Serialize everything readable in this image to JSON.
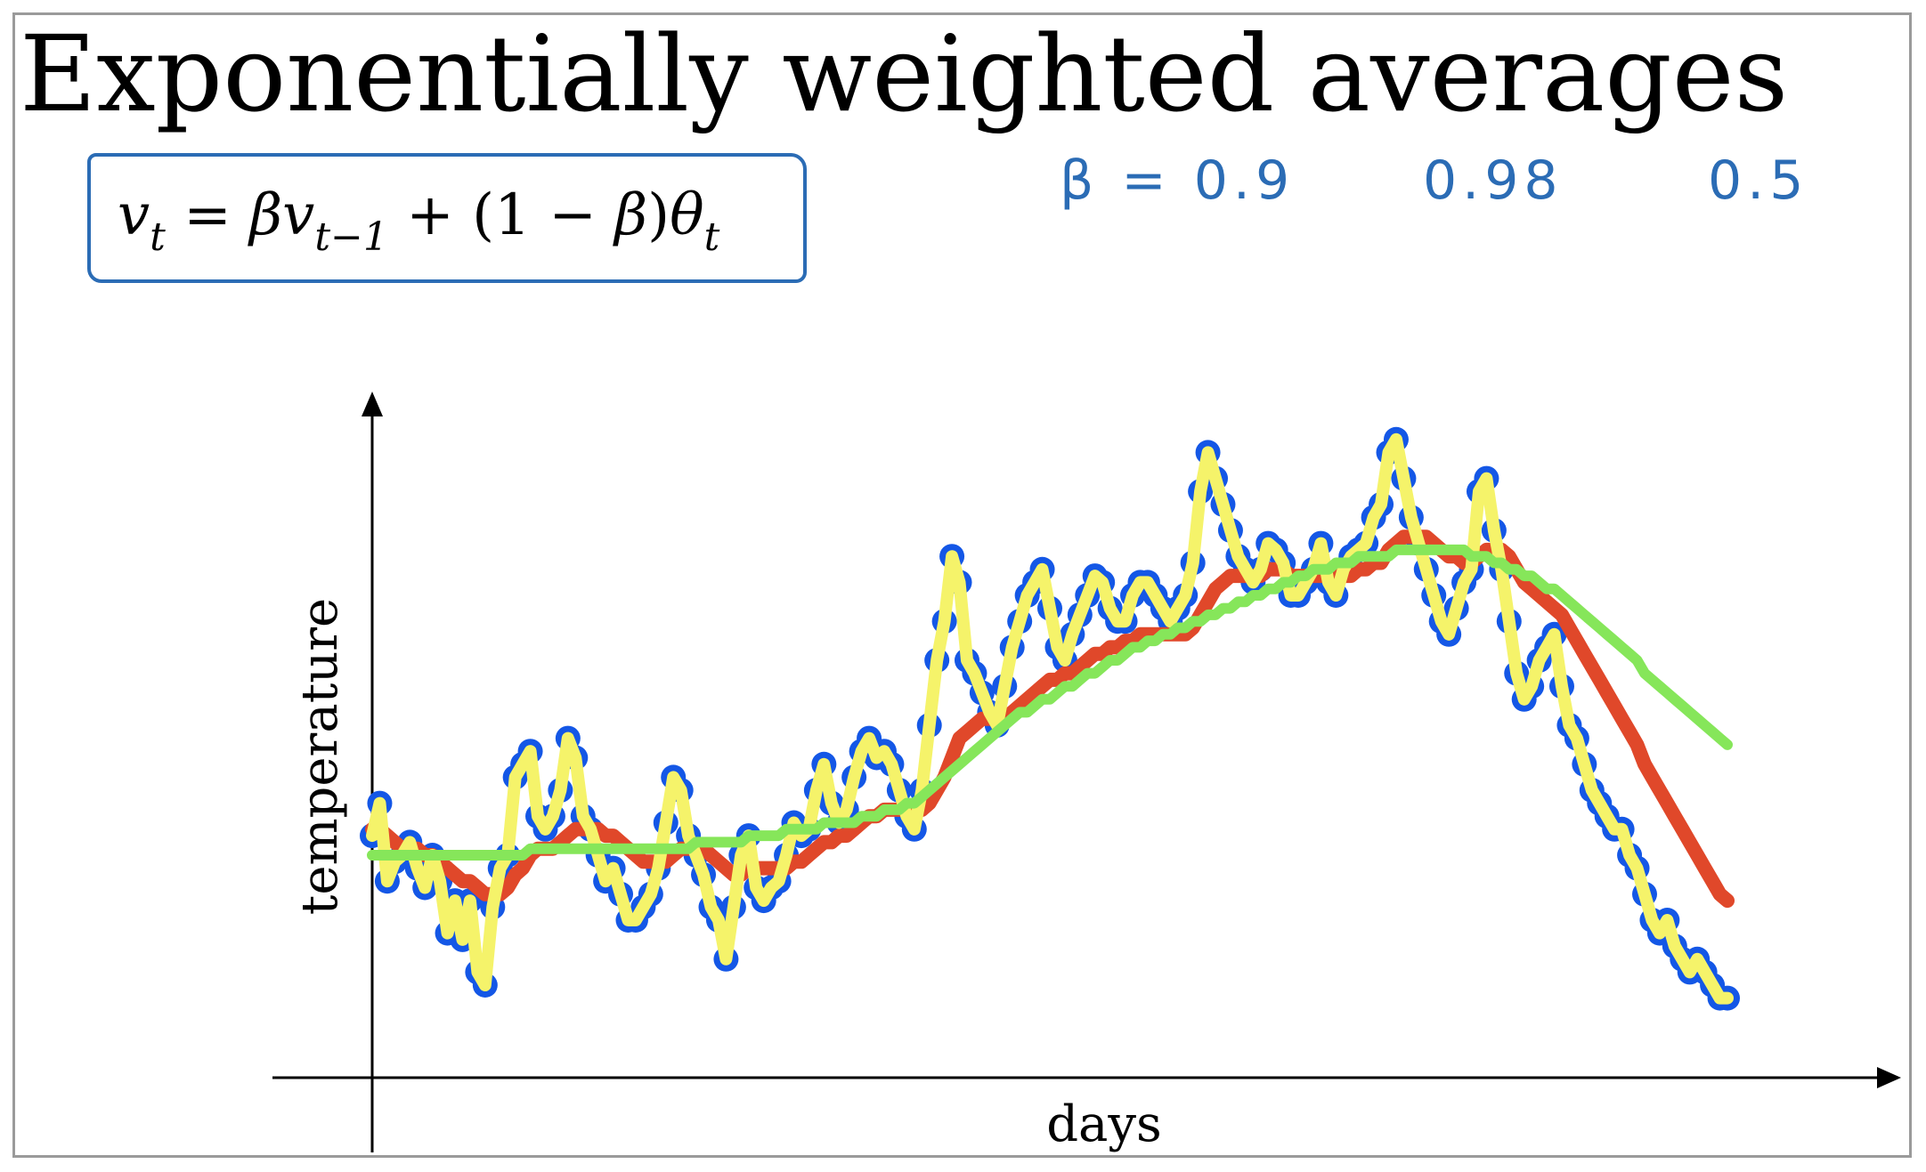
{
  "title": "Exponentially weighted averages",
  "formula": {
    "v": "v",
    "t": "t",
    "eq": " = ",
    "beta": "β",
    "tminus1": "t−1",
    "plus_open": " + (1 − ",
    "close": ")",
    "theta": "θ"
  },
  "handwritten_notes": {
    "beta_09": "β = 0.9",
    "beta_098": "0.98",
    "beta_05": "0.5"
  },
  "colors": {
    "points": "#1457e6",
    "red_series": "#e0482a",
    "yellow_series": "#f5f36a",
    "green_series": "#86e65a",
    "annotation_blue": "#2b6cb5"
  },
  "chart_data": {
    "type": "scatter",
    "xlabel": "days",
    "ylabel": "temperature",
    "xlim": [
      0,
      180
    ],
    "ylim": [
      0,
      100
    ],
    "grid": false,
    "points": [
      [
        0,
        33
      ],
      [
        1,
        38
      ],
      [
        2,
        26
      ],
      [
        3,
        29
      ],
      [
        4,
        30
      ],
      [
        5,
        32
      ],
      [
        6,
        28
      ],
      [
        7,
        25
      ],
      [
        8,
        30
      ],
      [
        9,
        26
      ],
      [
        10,
        18
      ],
      [
        11,
        23
      ],
      [
        12,
        17
      ],
      [
        13,
        23
      ],
      [
        14,
        12
      ],
      [
        15,
        10
      ],
      [
        16,
        22
      ],
      [
        17,
        28
      ],
      [
        18,
        30
      ],
      [
        19,
        42
      ],
      [
        20,
        44
      ],
      [
        21,
        46
      ],
      [
        22,
        36
      ],
      [
        23,
        34
      ],
      [
        24,
        36
      ],
      [
        25,
        40
      ],
      [
        26,
        48
      ],
      [
        27,
        45
      ],
      [
        28,
        36
      ],
      [
        29,
        34
      ],
      [
        30,
        30
      ],
      [
        31,
        26
      ],
      [
        32,
        28
      ],
      [
        33,
        24
      ],
      [
        34,
        20
      ],
      [
        35,
        20
      ],
      [
        36,
        22
      ],
      [
        37,
        24
      ],
      [
        38,
        28
      ],
      [
        39,
        35
      ],
      [
        40,
        42
      ],
      [
        41,
        40
      ],
      [
        42,
        33
      ],
      [
        43,
        30
      ],
      [
        44,
        27
      ],
      [
        45,
        22
      ],
      [
        46,
        20
      ],
      [
        47,
        14
      ],
      [
        48,
        22
      ],
      [
        49,
        30
      ],
      [
        50,
        33
      ],
      [
        51,
        25
      ],
      [
        52,
        23
      ],
      [
        53,
        25
      ],
      [
        54,
        26
      ],
      [
        55,
        30
      ],
      [
        56,
        35
      ],
      [
        57,
        33
      ],
      [
        58,
        34
      ],
      [
        59,
        40
      ],
      [
        60,
        44
      ],
      [
        61,
        38
      ],
      [
        62,
        35
      ],
      [
        63,
        37
      ],
      [
        64,
        42
      ],
      [
        65,
        46
      ],
      [
        66,
        48
      ],
      [
        67,
        45
      ],
      [
        68,
        46
      ],
      [
        69,
        44
      ],
      [
        70,
        40
      ],
      [
        71,
        36
      ],
      [
        72,
        34
      ],
      [
        73,
        40
      ],
      [
        74,
        50
      ],
      [
        75,
        60
      ],
      [
        76,
        66
      ],
      [
        77,
        76
      ],
      [
        78,
        72
      ],
      [
        79,
        60
      ],
      [
        80,
        58
      ],
      [
        81,
        55
      ],
      [
        82,
        52
      ],
      [
        83,
        50
      ],
      [
        84,
        56
      ],
      [
        85,
        62
      ],
      [
        86,
        66
      ],
      [
        87,
        70
      ],
      [
        88,
        72
      ],
      [
        89,
        74
      ],
      [
        90,
        68
      ],
      [
        91,
        62
      ],
      [
        92,
        60
      ],
      [
        93,
        64
      ],
      [
        94,
        67
      ],
      [
        95,
        70
      ],
      [
        96,
        73
      ],
      [
        97,
        72
      ],
      [
        98,
        68
      ],
      [
        99,
        66
      ],
      [
        100,
        66
      ],
      [
        101,
        70
      ],
      [
        102,
        72
      ],
      [
        103,
        72
      ],
      [
        104,
        70
      ],
      [
        105,
        68
      ],
      [
        106,
        66
      ],
      [
        107,
        68
      ],
      [
        108,
        70
      ],
      [
        109,
        75
      ],
      [
        110,
        86
      ],
      [
        111,
        92
      ],
      [
        112,
        88
      ],
      [
        113,
        84
      ],
      [
        114,
        80
      ],
      [
        115,
        76
      ],
      [
        116,
        74
      ],
      [
        117,
        72
      ],
      [
        118,
        74
      ],
      [
        119,
        78
      ],
      [
        120,
        77
      ],
      [
        121,
        75
      ],
      [
        122,
        70
      ],
      [
        123,
        70
      ],
      [
        124,
        72
      ],
      [
        125,
        74
      ],
      [
        126,
        78
      ],
      [
        127,
        72
      ],
      [
        128,
        70
      ],
      [
        129,
        74
      ],
      [
        130,
        76
      ],
      [
        131,
        77
      ],
      [
        132,
        78
      ],
      [
        133,
        82
      ],
      [
        134,
        84
      ],
      [
        135,
        92
      ],
      [
        136,
        94
      ],
      [
        137,
        88
      ],
      [
        138,
        82
      ],
      [
        139,
        78
      ],
      [
        140,
        74
      ],
      [
        141,
        70
      ],
      [
        142,
        66
      ],
      [
        143,
        64
      ],
      [
        144,
        68
      ],
      [
        145,
        72
      ],
      [
        146,
        74
      ],
      [
        147,
        86
      ],
      [
        148,
        88
      ],
      [
        149,
        80
      ],
      [
        150,
        74
      ],
      [
        151,
        66
      ],
      [
        152,
        58
      ],
      [
        153,
        54
      ],
      [
        154,
        56
      ],
      [
        155,
        60
      ],
      [
        156,
        62
      ],
      [
        157,
        64
      ],
      [
        158,
        56
      ],
      [
        159,
        50
      ],
      [
        160,
        48
      ],
      [
        161,
        44
      ],
      [
        162,
        40
      ],
      [
        163,
        38
      ],
      [
        164,
        36
      ],
      [
        165,
        34
      ],
      [
        166,
        34
      ],
      [
        167,
        30
      ],
      [
        168,
        28
      ],
      [
        169,
        24
      ],
      [
        170,
        20
      ],
      [
        171,
        18
      ],
      [
        172,
        20
      ],
      [
        173,
        16
      ],
      [
        174,
        14
      ],
      [
        175,
        12
      ],
      [
        176,
        14
      ],
      [
        177,
        12
      ],
      [
        178,
        10
      ],
      [
        179,
        8
      ],
      [
        180,
        8
      ]
    ],
    "series": [
      {
        "name": "",
        "color_key": "red_series",
        "values": [
          34,
          34,
          33,
          32,
          31,
          31,
          31,
          30,
          30,
          29,
          28,
          27,
          26,
          26,
          25,
          24,
          24,
          24,
          25,
          27,
          28,
          30,
          31,
          31,
          31,
          32,
          33,
          34,
          34,
          34,
          34,
          33,
          33,
          32,
          31,
          30,
          29,
          29,
          29,
          29,
          30,
          31,
          31,
          31,
          31,
          30,
          29,
          28,
          27,
          27,
          28,
          28,
          28,
          28,
          28,
          28,
          29,
          29,
          30,
          31,
          32,
          32,
          33,
          33,
          34,
          35,
          36,
          36,
          37,
          37,
          37,
          37,
          37,
          37,
          38,
          40,
          42,
          45,
          48,
          49,
          50,
          51,
          51,
          51,
          51,
          52,
          53,
          54,
          55,
          56,
          57,
          57,
          58,
          58,
          59,
          60,
          61,
          61,
          62,
          62,
          63,
          63,
          64,
          64,
          64,
          64,
          64,
          64,
          64,
          65,
          67,
          69,
          71,
          72,
          73,
          73,
          73,
          73,
          73,
          74,
          74,
          74,
          73,
          73,
          73,
          73,
          73,
          73,
          73,
          73,
          73,
          74,
          74,
          75,
          75,
          77,
          78,
          79,
          79,
          79,
          79,
          78,
          77,
          76,
          76,
          75,
          75,
          76,
          77,
          77,
          77,
          76,
          74,
          72,
          71,
          70,
          69,
          68,
          67,
          65,
          63,
          61,
          59,
          57,
          55,
          53,
          51,
          49,
          47,
          44,
          42,
          40,
          38,
          36,
          34,
          32,
          30,
          28,
          26,
          24,
          23
        ]
      },
      {
        "name": "",
        "color_key": "yellow_series",
        "values": [
          33,
          38,
          26,
          29,
          30,
          32,
          28,
          25,
          30,
          26,
          18,
          23,
          17,
          23,
          12,
          10,
          22,
          28,
          30,
          42,
          44,
          46,
          36,
          34,
          36,
          40,
          48,
          45,
          36,
          34,
          30,
          26,
          28,
          24,
          20,
          20,
          22,
          24,
          28,
          35,
          42,
          40,
          33,
          30,
          27,
          22,
          20,
          14,
          22,
          30,
          33,
          25,
          23,
          25,
          26,
          30,
          35,
          33,
          34,
          40,
          44,
          38,
          35,
          37,
          42,
          46,
          48,
          45,
          46,
          44,
          40,
          36,
          34,
          40,
          50,
          60,
          66,
          76,
          72,
          60,
          58,
          55,
          52,
          50,
          56,
          62,
          66,
          70,
          72,
          74,
          68,
          62,
          60,
          64,
          67,
          70,
          73,
          72,
          68,
          66,
          66,
          70,
          72,
          72,
          70,
          68,
          66,
          68,
          70,
          75,
          86,
          92,
          88,
          84,
          80,
          76,
          74,
          72,
          74,
          78,
          77,
          75,
          70,
          70,
          72,
          74,
          78,
          72,
          70,
          74,
          76,
          77,
          78,
          82,
          84,
          92,
          94,
          88,
          82,
          78,
          74,
          70,
          66,
          64,
          68,
          72,
          74,
          86,
          88,
          80,
          74,
          66,
          58,
          54,
          56,
          60,
          62,
          64,
          56,
          50,
          48,
          44,
          40,
          38,
          36,
          34,
          34,
          30,
          28,
          24,
          20,
          18,
          20,
          16,
          14,
          12,
          14,
          12,
          10,
          8,
          8
        ]
      },
      {
        "name": "",
        "color_key": "green_series",
        "values": [
          30,
          30,
          30,
          30,
          30,
          30,
          30,
          30,
          30,
          30,
          30,
          30,
          30,
          30,
          30,
          30,
          30,
          30,
          30,
          30,
          30,
          31,
          31,
          31,
          31,
          31,
          31,
          31,
          31,
          31,
          31,
          31,
          31,
          31,
          31,
          31,
          31,
          31,
          31,
          31,
          31,
          31,
          31,
          32,
          32,
          32,
          32,
          32,
          32,
          32,
          33,
          33,
          33,
          33,
          33,
          34,
          34,
          34,
          34,
          34,
          35,
          35,
          35,
          35,
          35,
          36,
          36,
          36,
          37,
          37,
          37,
          38,
          38,
          39,
          40,
          41,
          42,
          43,
          44,
          45,
          46,
          47,
          48,
          49,
          50,
          51,
          52,
          52,
          53,
          54,
          54,
          55,
          56,
          56,
          57,
          58,
          58,
          59,
          60,
          60,
          61,
          62,
          62,
          63,
          63,
          64,
          64,
          65,
          65,
          66,
          66,
          67,
          67,
          68,
          68,
          69,
          69,
          70,
          70,
          71,
          71,
          72,
          72,
          73,
          73,
          74,
          74,
          74,
          75,
          75,
          75,
          76,
          76,
          76,
          76,
          76,
          77,
          77,
          77,
          77,
          77,
          77,
          77,
          77,
          77,
          77,
          76,
          76,
          76,
          75,
          75,
          74,
          74,
          73,
          73,
          72,
          71,
          71,
          70,
          69,
          68,
          67,
          66,
          65,
          64,
          63,
          62,
          61,
          60,
          58,
          57,
          56,
          55,
          54,
          53,
          52,
          51,
          50,
          49,
          48,
          47
        ]
      }
    ]
  }
}
